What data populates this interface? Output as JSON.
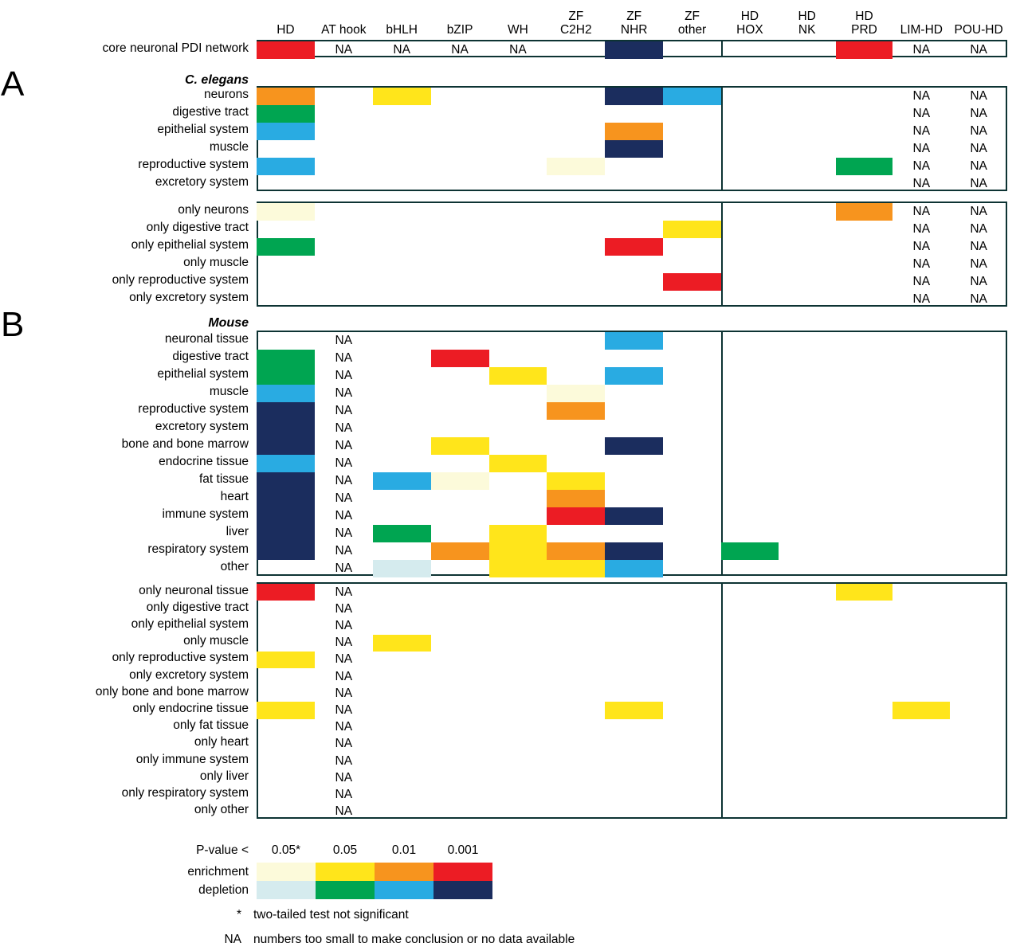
{
  "figure": {
    "panel_a": "A",
    "panel_b": "B"
  },
  "chart_data": {
    "type": "heatmap",
    "columns": [
      {
        "lines": [
          "HD"
        ]
      },
      {
        "lines": [
          "AT hook"
        ]
      },
      {
        "lines": [
          "bHLH"
        ]
      },
      {
        "lines": [
          "bZIP"
        ]
      },
      {
        "lines": [
          "WH"
        ]
      },
      {
        "lines": [
          "ZF",
          "C2H2"
        ]
      },
      {
        "lines": [
          "ZF",
          "NHR"
        ]
      },
      {
        "lines": [
          "ZF",
          "other"
        ]
      },
      {
        "lines": [
          "HD",
          "HOX"
        ]
      },
      {
        "lines": [
          "HD",
          "NK"
        ]
      },
      {
        "lines": [
          "HD",
          "PRD"
        ]
      },
      {
        "lines": [
          "LIM-HD"
        ]
      },
      {
        "lines": [
          "POU-HD"
        ]
      }
    ],
    "colors": {
      "E1": "#FCFADA",
      "E2": "#FFE51B",
      "E3": "#F7941E",
      "E4": "#EC1C24",
      "D1": "#D5EBEE",
      "D2": "#00A551",
      "D3": "#29ABE2",
      "D4": "#1B2D5E"
    },
    "core_block": {
      "id": "core",
      "rows": [
        {
          "label": "core neuronal PDI network",
          "cells": [
            "E4",
            "NA",
            "NA",
            "NA",
            "NA",
            "",
            "D4",
            "",
            "",
            "",
            "E4",
            "NA",
            "NA"
          ]
        }
      ]
    },
    "sections": [
      {
        "panel": "A",
        "species": "C. elegans",
        "blocks": [
          {
            "id": "celegans-tissues",
            "rows": [
              {
                "label": "neurons",
                "cells": [
                  "E3",
                  "",
                  "E2",
                  "",
                  "",
                  "",
                  "D4",
                  "D3",
                  "",
                  "",
                  "",
                  "NA",
                  "NA"
                ]
              },
              {
                "label": "digestive tract",
                "cells": [
                  "D2",
                  "",
                  "",
                  "",
                  "",
                  "",
                  "",
                  "",
                  "",
                  "",
                  "",
                  "NA",
                  "NA"
                ]
              },
              {
                "label": "epithelial system",
                "cells": [
                  "D3",
                  "",
                  "",
                  "",
                  "",
                  "",
                  "E3",
                  "",
                  "",
                  "",
                  "",
                  "NA",
                  "NA"
                ]
              },
              {
                "label": "muscle",
                "cells": [
                  "",
                  "",
                  "",
                  "",
                  "",
                  "",
                  "D4",
                  "",
                  "",
                  "",
                  "",
                  "NA",
                  "NA"
                ]
              },
              {
                "label": "reproductive system",
                "cells": [
                  "D3",
                  "",
                  "",
                  "",
                  "",
                  "E1",
                  "",
                  "",
                  "",
                  "",
                  "D2",
                  "NA",
                  "NA"
                ]
              },
              {
                "label": "excretory system",
                "cells": [
                  "",
                  "",
                  "",
                  "",
                  "",
                  "",
                  "",
                  "",
                  "",
                  "",
                  "",
                  "NA",
                  "NA"
                ]
              }
            ]
          },
          {
            "id": "celegans-only",
            "rows": [
              {
                "label": "only neurons",
                "cells": [
                  "E1",
                  "",
                  "",
                  "",
                  "",
                  "",
                  "",
                  "",
                  "",
                  "",
                  "E3",
                  "NA",
                  "NA"
                ]
              },
              {
                "label": "only digestive tract",
                "cells": [
                  "",
                  "",
                  "",
                  "",
                  "",
                  "",
                  "",
                  "E2",
                  "",
                  "",
                  "",
                  "NA",
                  "NA"
                ]
              },
              {
                "label": "only epithelial system",
                "cells": [
                  "D2",
                  "",
                  "",
                  "",
                  "",
                  "",
                  "E4",
                  "",
                  "",
                  "",
                  "",
                  "NA",
                  "NA"
                ]
              },
              {
                "label": "only muscle",
                "cells": [
                  "",
                  "",
                  "",
                  "",
                  "",
                  "",
                  "",
                  "",
                  "",
                  "",
                  "",
                  "NA",
                  "NA"
                ]
              },
              {
                "label": "only reproductive system",
                "cells": [
                  "",
                  "",
                  "",
                  "",
                  "",
                  "",
                  "",
                  "E4",
                  "",
                  "",
                  "",
                  "NA",
                  "NA"
                ]
              },
              {
                "label": "only excretory system",
                "cells": [
                  "",
                  "",
                  "",
                  "",
                  "",
                  "",
                  "",
                  "",
                  "",
                  "",
                  "",
                  "NA",
                  "NA"
                ]
              }
            ]
          }
        ]
      },
      {
        "panel": "B",
        "species": "Mouse",
        "blocks": [
          {
            "id": "mouse-tissues",
            "rows": [
              {
                "label": "neuronal tissue",
                "cells": [
                  "",
                  "NA",
                  "",
                  "",
                  "",
                  "",
                  "D3",
                  "",
                  "",
                  "",
                  "",
                  "",
                  ""
                ]
              },
              {
                "label": "digestive tract",
                "cells": [
                  "D2",
                  "NA",
                  "",
                  "E4",
                  "",
                  "",
                  "",
                  "",
                  "",
                  "",
                  "",
                  "",
                  ""
                ]
              },
              {
                "label": "epithelial system",
                "cells": [
                  "D2",
                  "NA",
                  "",
                  "",
                  "E2",
                  "",
                  "D3",
                  "",
                  "",
                  "",
                  "",
                  "",
                  ""
                ]
              },
              {
                "label": "muscle",
                "cells": [
                  "D3",
                  "NA",
                  "",
                  "",
                  "",
                  "E1",
                  "",
                  "",
                  "",
                  "",
                  "",
                  "",
                  ""
                ]
              },
              {
                "label": "reproductive system",
                "cells": [
                  "D4",
                  "NA",
                  "",
                  "",
                  "",
                  "E3",
                  "",
                  "",
                  "",
                  "",
                  "",
                  "",
                  ""
                ]
              },
              {
                "label": "excretory system",
                "cells": [
                  "D4",
                  "NA",
                  "",
                  "",
                  "",
                  "",
                  "",
                  "",
                  "",
                  "",
                  "",
                  "",
                  ""
                ]
              },
              {
                "label": "bone and bone marrow",
                "cells": [
                  "D4",
                  "NA",
                  "",
                  "E2",
                  "",
                  "",
                  "D4",
                  "",
                  "",
                  "",
                  "",
                  "",
                  ""
                ]
              },
              {
                "label": "endocrine tissue",
                "cells": [
                  "D3",
                  "NA",
                  "",
                  "",
                  "E2",
                  "",
                  "",
                  "",
                  "",
                  "",
                  "",
                  "",
                  ""
                ]
              },
              {
                "label": "fat tissue",
                "cells": [
                  "D4",
                  "NA",
                  "D3",
                  "E1",
                  "",
                  "E2",
                  "",
                  "",
                  "",
                  "",
                  "",
                  "",
                  ""
                ]
              },
              {
                "label": "heart",
                "cells": [
                  "D4",
                  "NA",
                  "",
                  "",
                  "",
                  "E3",
                  "",
                  "",
                  "",
                  "",
                  "",
                  "",
                  ""
                ]
              },
              {
                "label": "immune system",
                "cells": [
                  "D4",
                  "NA",
                  "",
                  "",
                  "",
                  "E4",
                  "D4",
                  "",
                  "",
                  "",
                  "",
                  "",
                  ""
                ]
              },
              {
                "label": "liver",
                "cells": [
                  "D4",
                  "NA",
                  "D2",
                  "",
                  "E2",
                  "",
                  "",
                  "",
                  "",
                  "",
                  "",
                  "",
                  ""
                ]
              },
              {
                "label": "respiratory system",
                "cells": [
                  "D4",
                  "NA",
                  "",
                  "E3",
                  "E2",
                  "E3",
                  "D4",
                  "",
                  "D2",
                  "",
                  "",
                  "",
                  ""
                ]
              },
              {
                "label": "other",
                "cells": [
                  "",
                  "NA",
                  "D1",
                  "",
                  "E2",
                  "E2",
                  "D3",
                  "",
                  "",
                  "",
                  "",
                  "",
                  ""
                ]
              }
            ]
          },
          {
            "id": "mouse-only",
            "rows": [
              {
                "label": "only neuronal tissue",
                "cells": [
                  "E4",
                  "NA",
                  "",
                  "",
                  "",
                  "",
                  "",
                  "",
                  "",
                  "",
                  "E2",
                  "",
                  ""
                ]
              },
              {
                "label": "only digestive tract",
                "cells": [
                  "",
                  "NA",
                  "",
                  "",
                  "",
                  "",
                  "",
                  "",
                  "",
                  "",
                  "",
                  "",
                  ""
                ]
              },
              {
                "label": "only epithelial system",
                "cells": [
                  "",
                  "NA",
                  "",
                  "",
                  "",
                  "",
                  "",
                  "",
                  "",
                  "",
                  "",
                  "",
                  ""
                ]
              },
              {
                "label": "only muscle",
                "cells": [
                  "",
                  "NA",
                  "E2",
                  "",
                  "",
                  "",
                  "",
                  "",
                  "",
                  "",
                  "",
                  "",
                  ""
                ]
              },
              {
                "label": "only reproductive system",
                "cells": [
                  "E2",
                  "NA",
                  "",
                  "",
                  "",
                  "",
                  "",
                  "",
                  "",
                  "",
                  "",
                  "",
                  ""
                ]
              },
              {
                "label": "only excretory system",
                "cells": [
                  "",
                  "NA",
                  "",
                  "",
                  "",
                  "",
                  "",
                  "",
                  "",
                  "",
                  "",
                  "",
                  ""
                ]
              },
              {
                "label": "only bone and bone marrow",
                "cells": [
                  "",
                  "NA",
                  "",
                  "",
                  "",
                  "",
                  "",
                  "",
                  "",
                  "",
                  "",
                  "",
                  ""
                ]
              },
              {
                "label": "only endocrine tissue",
                "cells": [
                  "E2",
                  "NA",
                  "",
                  "",
                  "",
                  "",
                  "E2",
                  "",
                  "",
                  "",
                  "",
                  "E2",
                  ""
                ]
              },
              {
                "label": "only fat tissue",
                "cells": [
                  "",
                  "NA",
                  "",
                  "",
                  "",
                  "",
                  "",
                  "",
                  "",
                  "",
                  "",
                  "",
                  ""
                ]
              },
              {
                "label": "only heart",
                "cells": [
                  "",
                  "NA",
                  "",
                  "",
                  "",
                  "",
                  "",
                  "",
                  "",
                  "",
                  "",
                  "",
                  ""
                ]
              },
              {
                "label": "only immune system",
                "cells": [
                  "",
                  "NA",
                  "",
                  "",
                  "",
                  "",
                  "",
                  "",
                  "",
                  "",
                  "",
                  "",
                  ""
                ]
              },
              {
                "label": "only liver",
                "cells": [
                  "",
                  "NA",
                  "",
                  "",
                  "",
                  "",
                  "",
                  "",
                  "",
                  "",
                  "",
                  "",
                  ""
                ]
              },
              {
                "label": "only respiratory system",
                "cells": [
                  "",
                  "NA",
                  "",
                  "",
                  "",
                  "",
                  "",
                  "",
                  "",
                  "",
                  "",
                  "",
                  ""
                ]
              },
              {
                "label": "only other",
                "cells": [
                  "",
                  "NA",
                  "",
                  "",
                  "",
                  "",
                  "",
                  "",
                  "",
                  "",
                  "",
                  "",
                  ""
                ]
              }
            ]
          }
        ]
      }
    ],
    "legend": {
      "title": "P-value <",
      "thresholds": [
        "0.05*",
        "0.05",
        "0.01",
        "0.001"
      ],
      "rows": [
        {
          "label": "enrichment",
          "codes": [
            "E1",
            "E2",
            "E3",
            "E4"
          ]
        },
        {
          "label": "depletion",
          "codes": [
            "D1",
            "D2",
            "D3",
            "D4"
          ]
        }
      ]
    },
    "footnotes": [
      {
        "symbol": "*",
        "text": "two-tailed test not significant"
      },
      {
        "symbol": "NA",
        "text": "numbers too small to make conclusion or no data available"
      }
    ]
  }
}
